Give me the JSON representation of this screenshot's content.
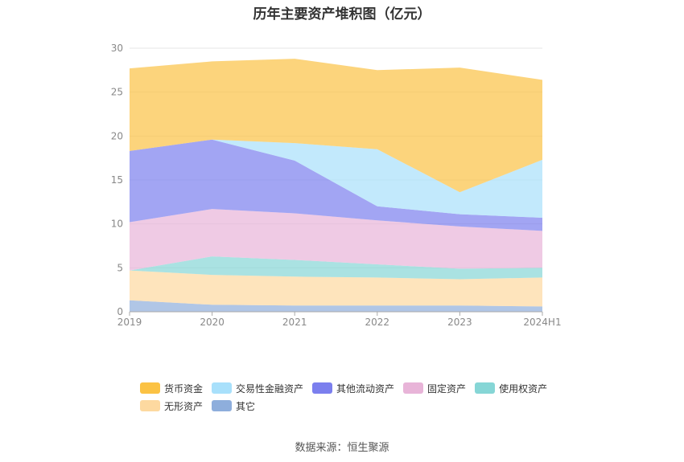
{
  "chart_data": {
    "type": "area",
    "stacked": true,
    "title": "历年主要资产堆积图（亿元）",
    "categories": [
      "2019",
      "2020",
      "2021",
      "2022",
      "2023",
      "2024H1"
    ],
    "ylim": [
      0,
      30
    ],
    "yticks": [
      0,
      5,
      10,
      15,
      20,
      25,
      30
    ],
    "grid": true,
    "legend_position": "bottom",
    "series": [
      {
        "name": "其它",
        "color": "#8eaedc",
        "values": [
          1.3,
          0.8,
          0.7,
          0.7,
          0.7,
          0.6
        ]
      },
      {
        "name": "无形资产",
        "color": "#fdd9a0",
        "values": [
          3.4,
          3.4,
          3.3,
          3.2,
          3.0,
          3.3
        ]
      },
      {
        "name": "使用权资产",
        "color": "#86d6d6",
        "values": [
          0.0,
          2.1,
          1.9,
          1.5,
          1.2,
          1.1
        ]
      },
      {
        "name": "固定资产",
        "color": "#e8b4d8",
        "values": [
          5.5,
          5.4,
          5.3,
          5.0,
          4.8,
          4.2
        ]
      },
      {
        "name": "其他流动资产",
        "color": "#7b7fee",
        "values": [
          8.1,
          7.9,
          6.0,
          1.6,
          1.4,
          1.5
        ]
      },
      {
        "name": "交易性金融资产",
        "color": "#a8e0fb",
        "values": [
          0.0,
          0.0,
          2.0,
          6.5,
          2.5,
          6.6
        ]
      },
      {
        "name": "货币资金",
        "color": "#fbc244",
        "values": [
          9.4,
          8.9,
          9.6,
          9.0,
          14.2,
          9.1
        ]
      }
    ],
    "legend_order": [
      "货币资金",
      "交易性金融资产",
      "其他流动资产",
      "固定资产",
      "使用权资产",
      "无形资产",
      "其它"
    ]
  },
  "source_label": "数据来源：恒生聚源"
}
